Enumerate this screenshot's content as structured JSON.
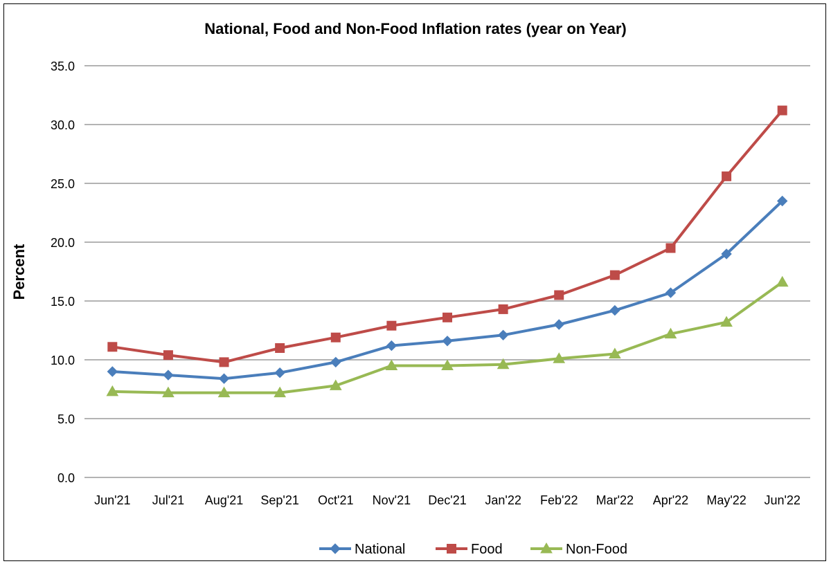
{
  "chart_data": {
    "type": "line",
    "title": "National, Food and Non-Food Inflation rates (year on Year)",
    "xlabel": "",
    "ylabel": "Percent",
    "ylim": [
      0,
      35
    ],
    "yticks": [
      "0.0",
      "5.0",
      "10.0",
      "15.0",
      "20.0",
      "25.0",
      "30.0",
      "35.0"
    ],
    "grid": true,
    "legend_position": "bottom",
    "categories": [
      "Jun'21",
      "Jul'21",
      "Aug'21",
      "Sep'21",
      "Oct'21",
      "Nov'21",
      "Dec'21",
      "Jan'22",
      "Feb'22",
      "Mar'22",
      "Apr'22",
      "May'22",
      "Jun'22"
    ],
    "series": [
      {
        "name": "National",
        "color": "#4a7ebb",
        "marker": "diamond",
        "values": [
          9.0,
          8.7,
          8.4,
          8.9,
          9.8,
          11.2,
          11.6,
          12.1,
          13.0,
          14.2,
          15.7,
          19.0,
          23.5
        ]
      },
      {
        "name": "Food",
        "color": "#be4b48",
        "marker": "square",
        "values": [
          11.1,
          10.4,
          9.8,
          11.0,
          11.9,
          12.9,
          13.6,
          14.3,
          15.5,
          17.2,
          19.5,
          25.6,
          31.2
        ]
      },
      {
        "name": "Non-Food",
        "color": "#98b954",
        "marker": "triangle",
        "values": [
          7.3,
          7.2,
          7.2,
          7.2,
          7.8,
          9.5,
          9.5,
          9.6,
          10.1,
          10.5,
          12.2,
          13.2,
          16.6
        ]
      }
    ]
  }
}
